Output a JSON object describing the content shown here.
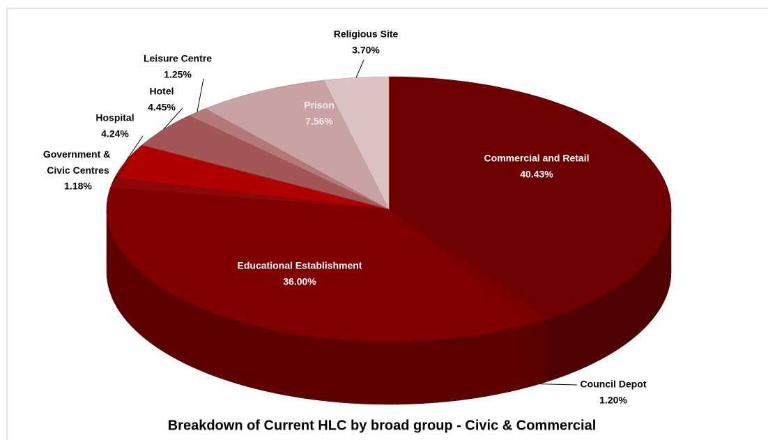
{
  "chart_data": {
    "type": "pie3d",
    "title": "Breakdown of Current HLC by broad group - Civic & Commercial",
    "categories": [
      "Commercial and Retail",
      "Council Depot",
      "Educational Establishment",
      "Government & Civic Centres",
      "Hospital",
      "Hotel",
      "Leisure Centre",
      "Prison",
      "Religious Site"
    ],
    "values": [
      40.43,
      1.2,
      36.0,
      1.18,
      4.24,
      4.45,
      1.25,
      7.56,
      3.7
    ],
    "value_labels": [
      "40.43%",
      "1.20%",
      "36.00%",
      "1.18%",
      "4.24%",
      "4.45%",
      "1.25%",
      "7.56%",
      "3.70%"
    ],
    "colors": [
      "#6e0000",
      "#7a0000",
      "#800000",
      "#8c0808",
      "#b00000",
      "#a45555",
      "#b47878",
      "#c9a3a3",
      "#dcc3c3"
    ]
  }
}
